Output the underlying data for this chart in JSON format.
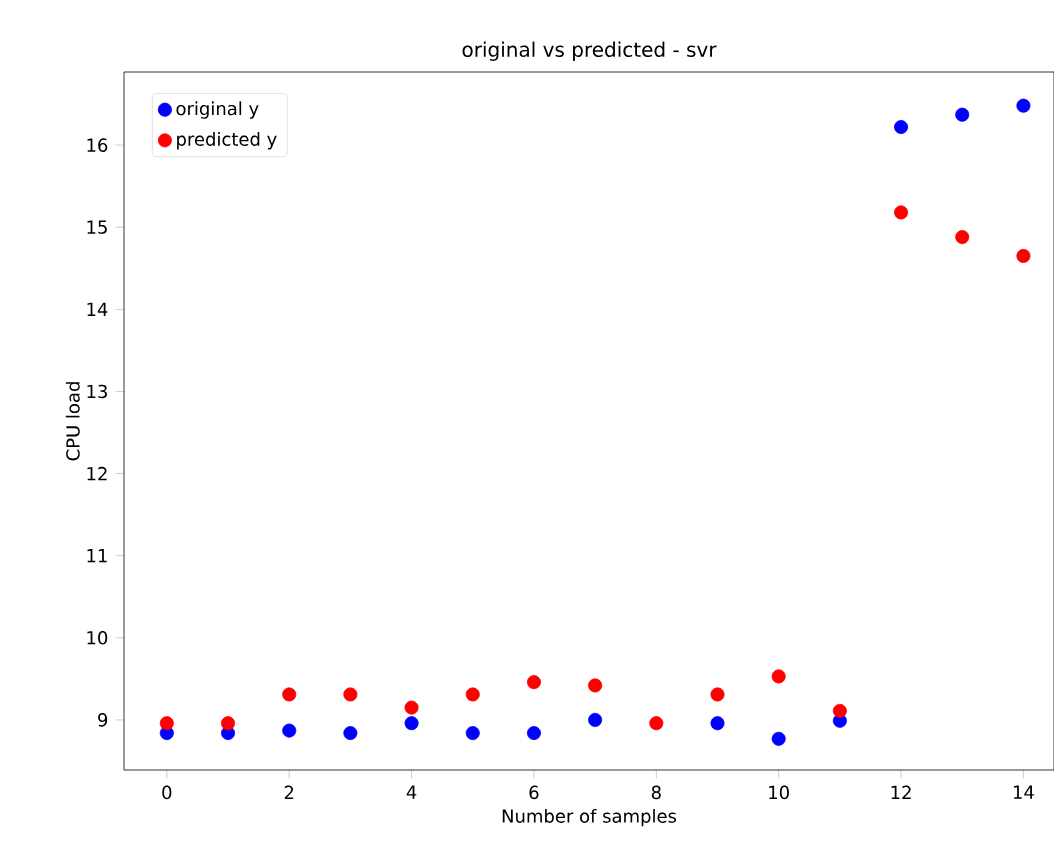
{
  "chart_data": {
    "type": "scatter",
    "title": "original vs predicted - svr",
    "xlabel": "Number of samples",
    "ylabel": "CPU load",
    "x": [
      0,
      1,
      2,
      3,
      4,
      5,
      6,
      7,
      8,
      9,
      10,
      11,
      12,
      13,
      14
    ],
    "series": [
      {
        "name": "original y",
        "color": "#0000ff",
        "values": [
          8.84,
          8.84,
          8.87,
          8.84,
          8.96,
          8.84,
          8.84,
          9.0,
          null,
          8.96,
          8.77,
          8.99,
          16.22,
          16.37,
          16.48
        ]
      },
      {
        "name": "predicted y",
        "color": "#ff0000",
        "values": [
          8.96,
          8.96,
          9.31,
          9.31,
          9.15,
          9.31,
          9.46,
          9.42,
          8.96,
          9.31,
          9.53,
          9.11,
          15.18,
          14.88,
          14.65
        ]
      }
    ],
    "xlim": [
      -0.7,
      14.5
    ],
    "ylim": [
      8.39,
      16.89
    ],
    "xticks": [
      0,
      2,
      4,
      6,
      8,
      10,
      12,
      14
    ],
    "yticks": [
      9,
      10,
      11,
      12,
      13,
      14,
      15,
      16
    ],
    "marker": "circle",
    "legend": "top left",
    "grid": false
  }
}
